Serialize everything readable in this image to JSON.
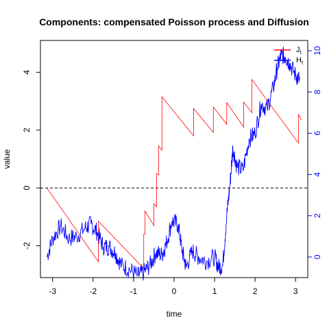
{
  "chart_data": {
    "type": "line",
    "title": "Components: compensated Poisson process and Diffusion",
    "xlabel": "time",
    "ylabel": "value",
    "xlim": [
      -3.3,
      3.3
    ],
    "xticks": [
      -3,
      -2,
      -1,
      0,
      1,
      2,
      3
    ],
    "ylim_left": [
      -3.1,
      5.1
    ],
    "yticks_left": [
      -2,
      0,
      2,
      4
    ],
    "ylim_right": [
      -1.0,
      10.5
    ],
    "yticks_right": [
      0,
      2,
      4,
      6,
      8,
      10
    ],
    "reference_line": {
      "y": 0,
      "style": "dashed",
      "color": "#000000"
    },
    "legend_position": "top-right",
    "colors": {
      "J": "#ff0000",
      "H": "#0000ff",
      "axis_right": "#0000ff"
    },
    "series": [
      {
        "name": "J",
        "subscript": "t",
        "axis": "left",
        "color": "#ff0000",
        "points": [
          [
            -3.14,
            0.0
          ],
          [
            -1.87,
            -2.55
          ],
          [
            -1.87,
            -1.15
          ],
          [
            -0.75,
            -2.78
          ],
          [
            -0.75,
            -1.6
          ],
          [
            -0.72,
            -1.6
          ],
          [
            -0.72,
            -0.8
          ],
          [
            -0.5,
            -1.3
          ],
          [
            -0.5,
            -0.55
          ],
          [
            -0.43,
            -0.65
          ],
          [
            -0.43,
            0.5
          ],
          [
            -0.38,
            0.45
          ],
          [
            -0.38,
            1.45
          ],
          [
            -0.3,
            1.3
          ],
          [
            -0.3,
            3.15
          ],
          [
            0.48,
            1.8
          ],
          [
            0.48,
            2.75
          ],
          [
            0.97,
            1.92
          ],
          [
            0.97,
            2.8
          ],
          [
            1.3,
            2.2
          ],
          [
            1.3,
            2.95
          ],
          [
            1.72,
            2.1
          ],
          [
            1.72,
            2.97
          ],
          [
            1.92,
            2.6
          ],
          [
            1.92,
            3.75
          ],
          [
            3.07,
            1.55
          ],
          [
            3.07,
            2.55
          ],
          [
            3.14,
            2.35
          ]
        ]
      },
      {
        "name": "H",
        "subscript": "t",
        "axis": "right",
        "color": "#0000ff",
        "points": [
          [
            -3.14,
            0.0
          ],
          [
            -3.0,
            0.9
          ],
          [
            -2.8,
            1.5
          ],
          [
            -2.6,
            0.9
          ],
          [
            -2.4,
            1.0
          ],
          [
            -2.2,
            1.4
          ],
          [
            -2.05,
            1.6
          ],
          [
            -1.9,
            1.2
          ],
          [
            -1.75,
            0.5
          ],
          [
            -1.6,
            0.5
          ],
          [
            -1.45,
            0.2
          ],
          [
            -1.3,
            -0.4
          ],
          [
            -1.1,
            -0.6
          ],
          [
            -0.9,
            -0.9
          ],
          [
            -0.75,
            -0.75
          ],
          [
            -0.6,
            -0.4
          ],
          [
            -0.45,
            0.2
          ],
          [
            -0.3,
            0.1
          ],
          [
            -0.2,
            0.6
          ],
          [
            -0.05,
            1.75
          ],
          [
            0.1,
            1.55
          ],
          [
            0.2,
            0.3
          ],
          [
            0.3,
            -0.5
          ],
          [
            0.45,
            0.3
          ],
          [
            0.6,
            0.0
          ],
          [
            0.8,
            -0.2
          ],
          [
            1.0,
            0.0
          ],
          [
            1.1,
            -0.5
          ],
          [
            1.2,
            -0.4
          ],
          [
            1.3,
            2.0
          ],
          [
            1.38,
            3.5
          ],
          [
            1.45,
            5.3
          ],
          [
            1.55,
            4.4
          ],
          [
            1.7,
            4.2
          ],
          [
            1.85,
            5.7
          ],
          [
            2.0,
            6.0
          ],
          [
            2.15,
            7.4
          ],
          [
            2.3,
            7.2
          ],
          [
            2.45,
            8.2
          ],
          [
            2.55,
            9.2
          ],
          [
            2.65,
            9.8
          ],
          [
            2.75,
            9.7
          ],
          [
            2.85,
            9.4
          ],
          [
            3.0,
            8.8
          ],
          [
            3.1,
            8.6
          ]
        ]
      }
    ]
  }
}
